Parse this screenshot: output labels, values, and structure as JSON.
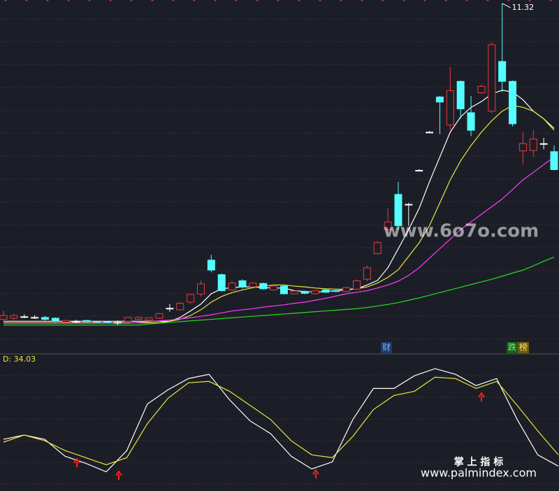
{
  "chart_data": [
    {
      "type": "candlestick",
      "ylim": [
        2.2,
        11.41
      ],
      "up_color": "#e8393a",
      "down_color": "#54ffff",
      "doji_color": "#ffffff",
      "high_label": "11.32",
      "candles": [
        {
          "open": 3.05,
          "close": 3.15,
          "high": 3.28,
          "low": 3.0
        },
        {
          "open": 3.08,
          "close": 3.15,
          "high": 3.2,
          "low": 3.02
        },
        {
          "open": 3.12,
          "close": 3.12,
          "high": 3.18,
          "low": 3.08
        },
        {
          "open": 3.1,
          "close": 3.1,
          "high": 3.16,
          "low": 3.06
        },
        {
          "open": 3.1,
          "close": 3.05,
          "high": 3.14,
          "low": 3.02
        },
        {
          "open": 3.08,
          "close": 3.0,
          "high": 3.1,
          "low": 2.98
        },
        {
          "open": 2.98,
          "close": 3.02,
          "high": 3.04,
          "low": 2.96
        },
        {
          "open": 3.0,
          "close": 3.0,
          "high": 3.04,
          "low": 2.95
        },
        {
          "open": 3.02,
          "close": 2.99,
          "high": 3.03,
          "low": 2.97
        },
        {
          "open": 3.0,
          "close": 2.98,
          "high": 3.01,
          "low": 2.96
        },
        {
          "open": 2.99,
          "close": 2.97,
          "high": 3.0,
          "low": 2.95
        },
        {
          "open": 2.97,
          "close": 2.97,
          "high": 3.02,
          "low": 2.9
        },
        {
          "open": 3.0,
          "close": 3.1,
          "high": 3.12,
          "low": 2.98
        },
        {
          "open": 3.05,
          "close": 3.1,
          "high": 3.12,
          "low": 3.03
        },
        {
          "open": 3.03,
          "close": 3.09,
          "high": 3.1,
          "low": 3.0
        },
        {
          "open": 3.08,
          "close": 3.2,
          "high": 3.22,
          "low": 3.06
        },
        {
          "open": 3.34,
          "close": 3.34,
          "high": 3.45,
          "low": 3.25
        },
        {
          "open": 3.3,
          "close": 3.47,
          "high": 3.5,
          "low": 3.28
        },
        {
          "open": 3.5,
          "close": 3.7,
          "high": 3.72,
          "low": 3.45
        },
        {
          "open": 3.71,
          "close": 3.98,
          "high": 4.06,
          "low": 3.65
        },
        {
          "open": 4.6,
          "close": 4.34,
          "high": 4.74,
          "low": 4.28
        },
        {
          "open": 4.22,
          "close": 3.8,
          "high": 4.25,
          "low": 3.78
        },
        {
          "open": 3.82,
          "close": 4.0,
          "high": 4.05,
          "low": 3.8
        },
        {
          "open": 4.06,
          "close": 3.9,
          "high": 4.1,
          "low": 3.85
        },
        {
          "open": 3.9,
          "close": 4.0,
          "high": 4.02,
          "low": 3.88
        },
        {
          "open": 3.99,
          "close": 3.85,
          "high": 4.01,
          "low": 3.83
        },
        {
          "open": 3.82,
          "close": 3.92,
          "high": 3.95,
          "low": 3.8
        },
        {
          "open": 3.92,
          "close": 3.72,
          "high": 3.95,
          "low": 3.7
        },
        {
          "open": 3.72,
          "close": 3.79,
          "high": 3.82,
          "low": 3.7
        },
        {
          "open": 3.78,
          "close": 3.73,
          "high": 3.8,
          "low": 3.71
        },
        {
          "open": 3.72,
          "close": 3.8,
          "high": 3.82,
          "low": 3.7
        },
        {
          "open": 3.82,
          "close": 3.76,
          "high": 3.84,
          "low": 3.74
        },
        {
          "open": 3.8,
          "close": 3.78,
          "high": 3.82,
          "low": 3.76
        },
        {
          "open": 3.78,
          "close": 3.88,
          "high": 3.9,
          "low": 3.76
        },
        {
          "open": 3.84,
          "close": 4.06,
          "high": 4.1,
          "low": 3.82
        },
        {
          "open": 4.1,
          "close": 4.4,
          "high": 4.46,
          "low": 4.05
        },
        {
          "open": 4.77,
          "close": 5.06,
          "high": 5.1,
          "low": 4.75
        },
        {
          "open": 5.4,
          "close": 5.6,
          "high": 5.95,
          "low": 5.3
        },
        {
          "open": 6.32,
          "close": 5.5,
          "high": 6.65,
          "low": 5.4
        },
        {
          "open": 6.06,
          "close": 6.06,
          "high": 6.1,
          "low": 5.5
        },
        {
          "open": 6.95,
          "close": 6.95,
          "high": 6.98,
          "low": 6.92
        },
        {
          "open": 7.95,
          "close": 7.95,
          "high": 7.98,
          "low": 7.92
        },
        {
          "open": 8.87,
          "close": 8.74,
          "high": 8.9,
          "low": 7.9
        },
        {
          "open": 8.14,
          "close": 9.04,
          "high": 9.65,
          "low": 8.0
        },
        {
          "open": 9.28,
          "close": 8.56,
          "high": 9.3,
          "low": 8.3
        },
        {
          "open": 8.46,
          "close": 8.0,
          "high": 8.9,
          "low": 7.85
        },
        {
          "open": 8.98,
          "close": 9.15,
          "high": 9.2,
          "low": 8.95
        },
        {
          "open": 8.5,
          "close": 10.24,
          "high": 10.3,
          "low": 8.45
        },
        {
          "open": 9.8,
          "close": 9.28,
          "high": 11.32,
          "low": 9.0
        },
        {
          "open": 9.28,
          "close": 8.17,
          "high": 9.3,
          "low": 8.1
        },
        {
          "open": 7.46,
          "close": 7.65,
          "high": 7.95,
          "low": 7.1
        },
        {
          "open": 7.47,
          "close": 7.77,
          "high": 8.0,
          "low": 7.3
        },
        {
          "open": 7.65,
          "close": 7.65,
          "high": 7.8,
          "low": 7.5
        },
        {
          "open": 7.44,
          "close": 6.97,
          "high": 7.6,
          "low": 6.95
        }
      ],
      "series": [
        {
          "color": "#ffffff",
          "values": [
            3.0,
            3.0,
            3.0,
            3.0,
            3.0,
            3.0,
            3.0,
            3.0,
            3.0,
            3.0,
            3.0,
            3.0,
            3.0,
            3.0,
            3.0,
            3.0,
            3.0,
            3.1,
            3.27,
            3.45,
            3.72,
            3.85,
            3.88,
            3.9,
            3.9,
            3.88,
            3.87,
            3.87,
            3.8,
            3.78,
            3.76,
            3.78,
            3.8,
            3.82,
            3.85,
            3.95,
            4.07,
            4.4,
            4.9,
            5.4,
            5.95,
            6.65,
            7.3,
            7.95,
            8.35,
            8.6,
            8.75,
            8.95,
            9.05,
            9.0,
            8.8,
            8.5,
            8.3,
            8.05
          ]
        },
        {
          "color": "#e8e83a",
          "values": [
            2.96,
            2.96,
            2.96,
            2.96,
            2.96,
            2.96,
            2.96,
            2.96,
            2.96,
            2.96,
            2.96,
            2.96,
            2.96,
            2.96,
            2.96,
            2.96,
            3.0,
            3.05,
            3.15,
            3.3,
            3.5,
            3.65,
            3.75,
            3.82,
            3.88,
            3.92,
            3.95,
            3.95,
            3.92,
            3.9,
            3.87,
            3.85,
            3.84,
            3.84,
            3.85,
            3.9,
            4.0,
            4.15,
            4.35,
            4.7,
            5.05,
            5.5,
            6.1,
            6.7,
            7.2,
            7.6,
            7.95,
            8.25,
            8.5,
            8.65,
            8.6,
            8.5,
            8.3,
            8.0
          ]
        },
        {
          "color": "#ff3cff",
          "values": [
            2.95,
            2.95,
            2.95,
            2.95,
            2.95,
            2.95,
            2.95,
            2.95,
            2.95,
            2.95,
            2.95,
            2.95,
            2.95,
            2.97,
            2.99,
            3.01,
            3.03,
            3.06,
            3.09,
            3.13,
            3.17,
            3.22,
            3.27,
            3.3,
            3.33,
            3.37,
            3.4,
            3.43,
            3.47,
            3.5,
            3.55,
            3.6,
            3.66,
            3.72,
            3.76,
            3.8,
            3.87,
            3.95,
            4.05,
            4.2,
            4.4,
            4.65,
            4.9,
            5.15,
            5.4,
            5.6,
            5.8,
            6.0,
            6.2,
            6.45,
            6.7,
            6.9,
            7.1,
            7.3
          ]
        },
        {
          "color": "#22dd22",
          "values": [
            2.9,
            2.9,
            2.9,
            2.9,
            2.9,
            2.9,
            2.9,
            2.9,
            2.9,
            2.9,
            2.9,
            2.9,
            2.9,
            2.9,
            2.93,
            2.95,
            2.97,
            2.99,
            3.01,
            3.03,
            3.05,
            3.07,
            3.09,
            3.11,
            3.13,
            3.15,
            3.17,
            3.19,
            3.21,
            3.23,
            3.25,
            3.27,
            3.29,
            3.31,
            3.33,
            3.36,
            3.4,
            3.44,
            3.49,
            3.55,
            3.61,
            3.68,
            3.75,
            3.82,
            3.89,
            3.96,
            4.03,
            4.1,
            4.18,
            4.26,
            4.34,
            4.45,
            4.57,
            4.68
          ]
        }
      ],
      "tags": [
        "财",
        "跌",
        "榜"
      ]
    },
    {
      "type": "line",
      "ylim": [
        8.4,
        100
      ],
      "label": "D: 34.03",
      "series": [
        {
          "color": "#ffffff",
          "values": [
            45,
            48,
            45,
            33,
            28,
            22,
            37,
            70,
            80,
            88,
            91,
            73,
            58,
            49,
            33,
            24,
            29,
            59,
            81,
            81,
            90,
            95,
            91,
            83,
            88,
            59,
            34,
            26
          ]
        },
        {
          "color": "#e8e83a",
          "values": [
            43,
            48,
            44,
            37,
            32,
            27,
            32,
            56,
            74,
            85,
            86,
            79,
            69,
            59,
            44,
            34,
            32,
            47,
            66,
            76,
            79,
            89,
            88,
            81,
            86,
            69,
            51,
            34.03
          ]
        }
      ]
    }
  ],
  "watermarks": [
    "www.6o7o.com",
    "掌 上 指 标",
    "www.palmindex.com"
  ]
}
